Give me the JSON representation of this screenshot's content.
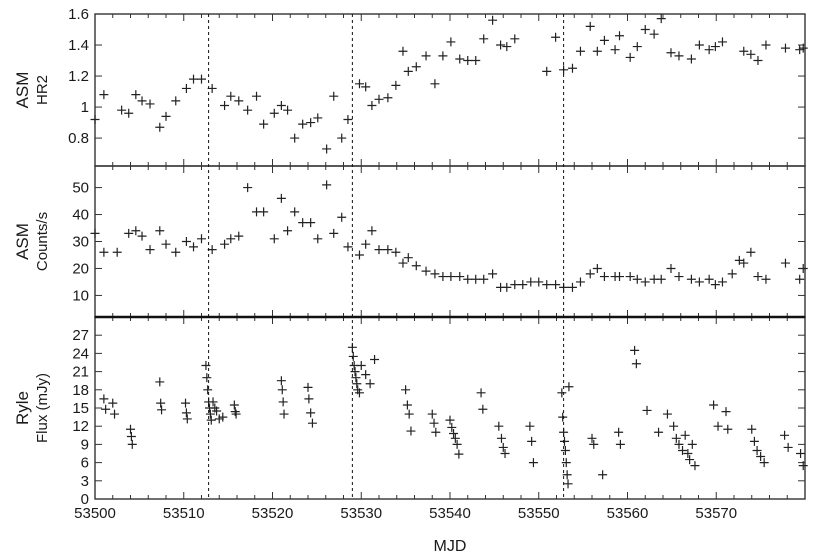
{
  "chart_data": [
    {
      "type": "scatter",
      "ylabel_lines": [
        "ASM",
        "HR2"
      ],
      "xlim": [
        53500,
        53580
      ],
      "ylim": [
        0.62,
        1.6
      ],
      "yticks": [
        0.8,
        1,
        1.2,
        1.4,
        1.6
      ],
      "ytick_labels": [
        "0.8",
        "1",
        "1.2",
        "1.4",
        "1.6"
      ],
      "x": [
        53500,
        53501,
        53503,
        53503.8,
        53504.6,
        53505.3,
        53506.2,
        53507.3,
        53508,
        53509.1,
        53510.3,
        53511.1,
        53512,
        53513.2,
        53514.6,
        53515.3,
        53516.2,
        53517.2,
        53518.2,
        53519,
        53520.2,
        53521,
        53521.7,
        53522.5,
        53523.4,
        53524.3,
        53525.1,
        53526.1,
        53526.9,
        53527.8,
        53528.5,
        53529.8,
        53530.5,
        53531.2,
        53532,
        53533,
        53533.9,
        53534.7,
        53535.3,
        53536.2,
        53537.3,
        53538.3,
        53539.2,
        53540.1,
        53541.1,
        53542,
        53542.9,
        53543.8,
        53544.8,
        53545.7,
        53546.4,
        53547.3,
        53550.9,
        53551.9,
        53552.8,
        53553.8,
        53554.7,
        53555.8,
        53556.6,
        53557.4,
        53558.6,
        53559.1,
        53560.3,
        53561.1,
        53562,
        53563,
        53563.8,
        53564.9,
        53565.8,
        53567.2,
        53568.1,
        53569.2,
        53569.9,
        53570.7,
        53573.1,
        53573.9,
        53574.7,
        53575.6,
        53577.8,
        53579.4,
        53579.8
      ],
      "y": [
        0.92,
        1.08,
        0.98,
        0.96,
        1.08,
        1.04,
        1.02,
        0.87,
        0.94,
        1.04,
        1.12,
        1.18,
        1.18,
        1.12,
        1.01,
        1.07,
        1.04,
        0.98,
        1.07,
        0.89,
        0.96,
        1.01,
        0.98,
        0.8,
        0.89,
        0.9,
        0.93,
        0.73,
        1.07,
        0.8,
        0.92,
        1.15,
        1.13,
        1.01,
        1.05,
        1.06,
        1.14,
        1.36,
        1.23,
        1.26,
        1.33,
        1.15,
        1.33,
        1.42,
        1.31,
        1.3,
        1.3,
        1.44,
        1.56,
        1.4,
        1.39,
        1.44,
        1.23,
        1.45,
        1.24,
        1.25,
        1.36,
        1.52,
        1.36,
        1.43,
        1.37,
        1.46,
        1.32,
        1.39,
        1.5,
        1.47,
        1.57,
        1.35,
        1.33,
        1.31,
        1.4,
        1.37,
        1.39,
        1.42,
        1.36,
        1.34,
        1.3,
        1.4,
        1.38,
        1.37,
        1.38
      ]
    },
    {
      "type": "scatter",
      "ylabel_lines": [
        "ASM",
        "Counts/s"
      ],
      "xlim": [
        53500,
        53580
      ],
      "ylim": [
        2,
        58
      ],
      "yticks": [
        10,
        20,
        30,
        40,
        50
      ],
      "ytick_labels": [
        "10",
        "20",
        "30",
        "40",
        "50"
      ],
      "x": [
        53500,
        53501,
        53502.5,
        53503.8,
        53504.6,
        53505.3,
        53506.2,
        53507.3,
        53508,
        53509.1,
        53510.3,
        53511.1,
        53512,
        53513.2,
        53514.6,
        53515.3,
        53516.2,
        53517.2,
        53518.2,
        53519,
        53520.2,
        53521,
        53521.7,
        53522.5,
        53523.4,
        53524.3,
        53525.1,
        53526.1,
        53526.9,
        53527.8,
        53528.5,
        53529.8,
        53530.5,
        53531.2,
        53532,
        53533,
        53533.9,
        53534.7,
        53535.3,
        53536.2,
        53537.3,
        53538.3,
        53539.2,
        53540.1,
        53541.1,
        53542,
        53542.9,
        53543.8,
        53544.8,
        53545.7,
        53546.4,
        53547.3,
        53548.2,
        53549.1,
        53550,
        53550.9,
        53551.9,
        53552.8,
        53553.8,
        53554.7,
        53555.8,
        53556.6,
        53557.4,
        53558.6,
        53559.1,
        53560.3,
        53561.1,
        53562,
        53563,
        53563.8,
        53564.9,
        53565.8,
        53567.2,
        53568.1,
        53569.2,
        53569.9,
        53570.7,
        53571.8,
        53572.6,
        53573.1,
        53573.9,
        53574.7,
        53575.6,
        53577.8,
        53579.4,
        53579.8
      ],
      "y": [
        33,
        26,
        26,
        33,
        34,
        32,
        27,
        34,
        29,
        26,
        30,
        28,
        31,
        27,
        29,
        31,
        32,
        50,
        41,
        41,
        31,
        46,
        34,
        41,
        37,
        37,
        31,
        51,
        33,
        39,
        28,
        25,
        29,
        34,
        27,
        27,
        26,
        22,
        24,
        21,
        19,
        18,
        17,
        17,
        17,
        16,
        16,
        16,
        18,
        13,
        13,
        14,
        14,
        15,
        15,
        14,
        14,
        13,
        13,
        15,
        18,
        20,
        17,
        17,
        17,
        17,
        16,
        15,
        16,
        16,
        20,
        17,
        16,
        15,
        16,
        14,
        15,
        18,
        23,
        22,
        26,
        17,
        16,
        22,
        16,
        20
      ]
    },
    {
      "type": "scatter",
      "ylabel_lines": [
        "Ryle",
        "Flux (mJy)"
      ],
      "xlabel": "MJD",
      "xlim": [
        53500,
        53580
      ],
      "ylim": [
        0,
        30
      ],
      "yticks": [
        0,
        3,
        6,
        9,
        12,
        15,
        18,
        21,
        24,
        27
      ],
      "ytick_labels": [
        "0",
        "3",
        "6",
        "9",
        "12",
        "15",
        "18",
        "21",
        "24",
        "27"
      ],
      "xticks": [
        53500,
        53510,
        53520,
        53530,
        53540,
        53550,
        53560,
        53570
      ],
      "xtick_labels": [
        "53500",
        "53510",
        "53520",
        "53530",
        "53540",
        "53550",
        "53560",
        "53570"
      ],
      "x": [
        53501,
        53501.2,
        53502,
        53502.2,
        53504,
        53504.1,
        53504.2,
        53507.3,
        53507.4,
        53507.5,
        53510.2,
        53510.3,
        53510.4,
        53512.5,
        53512.6,
        53512.7,
        53512.8,
        53512.9,
        53513,
        53513.1,
        53513.3,
        53513.5,
        53513.7,
        53514,
        53514.4,
        53515.7,
        53515.8,
        53515.9,
        53521,
        53521.1,
        53521.2,
        53521.3,
        53524,
        53524.1,
        53524.3,
        53524.5,
        53529,
        53529.1,
        53529.2,
        53529.3,
        53529.4,
        53529.5,
        53529.6,
        53529.8,
        53530,
        53530.5,
        53531,
        53531.5,
        53535,
        53535.2,
        53535.4,
        53535.6,
        53538,
        53538.2,
        53538.4,
        53540,
        53540.2,
        53540.4,
        53540.6,
        53540.8,
        53541,
        53543.5,
        53543.7,
        53545.5,
        53545.8,
        53546,
        53546.2,
        53549,
        53549.2,
        53549.4,
        53552.6,
        53552.7,
        53552.8,
        53552.9,
        53553,
        53553.1,
        53553.2,
        53553.3,
        53553.4,
        53556,
        53556.2,
        53557.2,
        53559,
        53559.2,
        53560.8,
        53561,
        53562.2,
        53563.5,
        53564.5,
        53565.2,
        53565.5,
        53565.8,
        53566.2,
        53566.5,
        53566.8,
        53567,
        53567.3,
        53567.6,
        53569.7,
        53570.2,
        53571.1,
        53571.3,
        53574,
        53574.3,
        53574.6,
        53575,
        53575.4,
        53577.7,
        53578.1,
        53579.5,
        53579.8
      ],
      "y": [
        16.5,
        14.8,
        15.8,
        14,
        11.5,
        10.3,
        9,
        19.3,
        15.8,
        14.7,
        15.8,
        14.2,
        13.2,
        22,
        20,
        18,
        16,
        15,
        14,
        13,
        16,
        15,
        14.5,
        13.2,
        13.5,
        15.5,
        14.4,
        14,
        19.5,
        18,
        16,
        14,
        18.4,
        16.5,
        14.2,
        12.5,
        25,
        23.5,
        22,
        21,
        20,
        19,
        18,
        17.5,
        22,
        20.5,
        19,
        23,
        18,
        15.5,
        14,
        11.2,
        14,
        12.5,
        11,
        13,
        11.8,
        10.8,
        10,
        9,
        7.4,
        17.5,
        14.8,
        12,
        10,
        8.5,
        7.5,
        12,
        9.5,
        6,
        17.5,
        13.5,
        11,
        9.5,
        8,
        6,
        4,
        2.5,
        18.5,
        10,
        9,
        4,
        11,
        9,
        24.5,
        22.3,
        14.6,
        11,
        14,
        12,
        10,
        9,
        8,
        10.5,
        7.5,
        6.5,
        9,
        5.5,
        15.5,
        12,
        14.4,
        11.5,
        11.5,
        9.5,
        8,
        7,
        6,
        10.5,
        8.5,
        7.5,
        5.5
      ]
    }
  ],
  "dashed_lines_mjd": [
    53512.8,
    53529,
    53552.8
  ]
}
